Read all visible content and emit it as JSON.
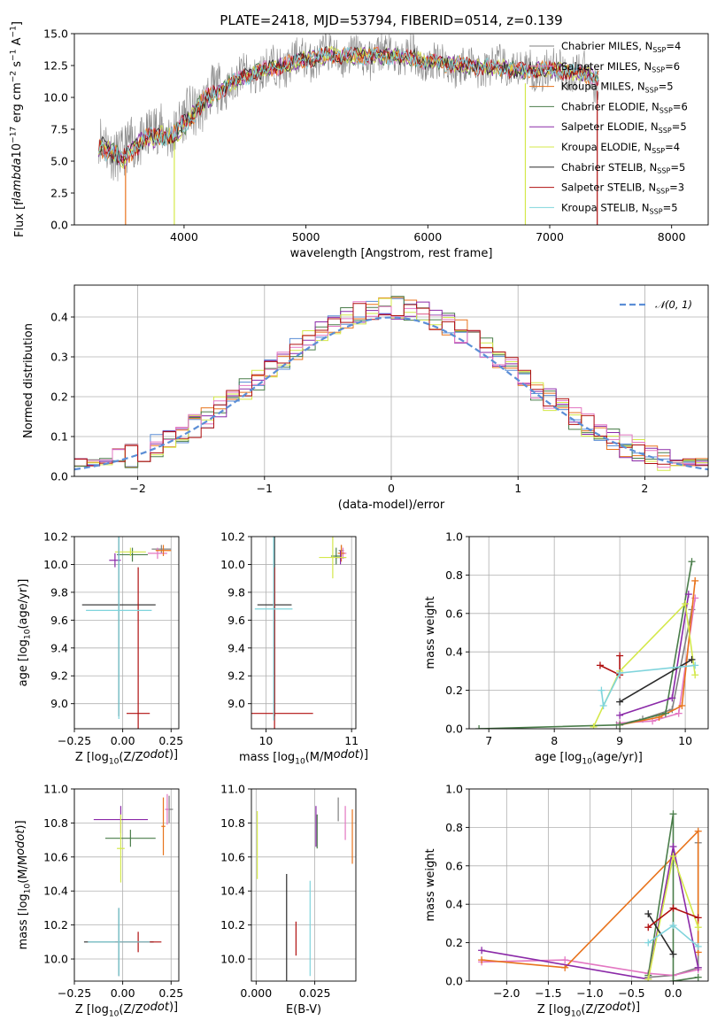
{
  "figure": {
    "title": "PLATE=2418, MJD=53794, FIBERID=0514, z=0.139"
  },
  "models": [
    {
      "name": "Chabrier MILES, N$_{SSP}$=4",
      "color": "#808080"
    },
    {
      "name": "Salpeter MILES, N$_{SSP}$=6",
      "color": "#e377c2"
    },
    {
      "name": "Kroupa MILES, N$_{SSP}$=5",
      "color": "#e8731c"
    },
    {
      "name": "Chabrier ELODIE, N$_{SSP}$=6",
      "color": "#4a7d4a"
    },
    {
      "name": "Salpeter ELODIE, N$_{SSP}$=5",
      "color": "#8b2aa8"
    },
    {
      "name": "Kroupa ELODIE, N$_{SSP}$=4",
      "color": "#d4e84a"
    },
    {
      "name": "Chabrier STELIB, N$_{SSP}$=5",
      "color": "#2b2b2b"
    },
    {
      "name": "Salpeter STELIB, N$_{SSP}$=3",
      "color": "#b01010"
    },
    {
      "name": "Kroupa STELIB, N$_{SSP}$=5",
      "color": "#7fd4dc"
    }
  ],
  "chart_data": [
    {
      "id": "spectrum",
      "type": "line",
      "xlabel": "wavelength [Angstrom, rest frame]",
      "ylabel": "Flux [f$_\\lambda$10$^{-17}$ erg cm$^{-2}$ s$^{-1}$ A$^{-1}$]",
      "xlim": [
        3100,
        8300
      ],
      "ylim": [
        0,
        15
      ],
      "xticks": [
        4000,
        5000,
        6000,
        7000,
        8000
      ],
      "yticks": [
        0.0,
        2.5,
        5.0,
        7.5,
        10.0,
        12.5,
        15.0
      ],
      "continuum": [
        [
          3300,
          6.5
        ],
        [
          3500,
          5.5
        ],
        [
          3700,
          7.2
        ],
        [
          3900,
          7.3
        ],
        [
          4000,
          8.2
        ],
        [
          4200,
          10.0
        ],
        [
          4400,
          11.2
        ],
        [
          4600,
          12.0
        ],
        [
          4800,
          12.5
        ],
        [
          5000,
          13.0
        ],
        [
          5200,
          13.3
        ],
        [
          5400,
          13.2
        ],
        [
          5600,
          13.3
        ],
        [
          5800,
          13.2
        ],
        [
          6000,
          12.8
        ],
        [
          6200,
          12.6
        ],
        [
          6400,
          12.4
        ],
        [
          6600,
          12.3
        ],
        [
          6800,
          12.1
        ],
        [
          7000,
          12.2
        ],
        [
          7200,
          12.0
        ],
        [
          7400,
          11.5
        ]
      ],
      "dips": [
        [
          3520,
          0
        ],
        [
          3920,
          0
        ],
        [
          6800,
          0
        ],
        [
          7390,
          0
        ]
      ],
      "grid": false,
      "legend": "right"
    },
    {
      "id": "residuals",
      "type": "histogram",
      "xlabel": "(data-model)/error",
      "ylabel": "Normed distribution",
      "xlim": [
        -2.5,
        2.5
      ],
      "ylim": [
        0,
        0.48
      ],
      "xticks": [
        -2,
        -1,
        0,
        1,
        2
      ],
      "yticks": [
        0.0,
        0.1,
        0.2,
        0.3,
        0.4
      ],
      "bin_width": 0.1,
      "reference": {
        "name": "$\\mathcal{N}(0, 1)$",
        "mean": 0,
        "sigma": 1,
        "color": "#5b8ed6"
      },
      "grid": true,
      "legend": "top-right"
    },
    {
      "id": "age-vs-z",
      "type": "errorbar",
      "xlabel": "Z [log$_{10}$(Z/Z$_\\odot$)]",
      "ylabel": "age  [log$_{10}$(age/yr)]",
      "xlim": [
        -0.25,
        0.29
      ],
      "ylim": [
        8.82,
        10.2
      ],
      "xticks": [
        -0.25,
        0.0,
        0.25
      ],
      "yticks": [
        9.0,
        9.2,
        9.4,
        9.6,
        9.8,
        10.0,
        10.2
      ],
      "points": [
        {
          "x": 0.2,
          "y": 10.11,
          "xerr": 0.05,
          "yerr": 0.03
        },
        {
          "x": 0.18,
          "y": 10.08,
          "xerr": 0.05,
          "yerr": 0.04
        },
        {
          "x": 0.21,
          "y": 10.1,
          "xerr": 0.04,
          "yerr": 0.04
        },
        {
          "x": 0.05,
          "y": 10.07,
          "xerr": 0.08,
          "yerr": 0.05
        },
        {
          "x": -0.04,
          "y": 10.03,
          "xerr": 0.03,
          "yerr": 0.05
        },
        {
          "x": 0.04,
          "y": 10.09,
          "xerr": 0.08,
          "yerr": 0.03
        },
        {
          "x": -0.02,
          "y": 9.71,
          "xerr": 0.19,
          "yerr": 0.8
        },
        {
          "x": 0.08,
          "y": 8.93,
          "xerr": 0.06,
          "yerr": 1.05
        },
        {
          "x": -0.02,
          "y": 9.67,
          "xerr": 0.17,
          "yerr": 0.78
        }
      ],
      "grid": true
    },
    {
      "id": "age-vs-mass",
      "type": "errorbar",
      "xlabel": "mass [log$_{10}$(M/M$_\\odot$)]",
      "ylabel": "",
      "xlim": [
        9.83,
        11.05
      ],
      "ylim": [
        8.82,
        10.2
      ],
      "xticks": [
        10,
        11
      ],
      "yticks": [
        9.0,
        9.2,
        9.4,
        9.6,
        9.8,
        10.0,
        10.2
      ],
      "points": [
        {
          "x": 10.88,
          "y": 10.1,
          "xerr": 0.03,
          "yerr": 0.04
        },
        {
          "x": 10.9,
          "y": 10.08,
          "xerr": 0.04,
          "yerr": 0.04
        },
        {
          "x": 10.88,
          "y": 10.08,
          "xerr": 0.04,
          "yerr": 0.06
        },
        {
          "x": 10.82,
          "y": 10.06,
          "xerr": 0.06,
          "yerr": 0.06
        },
        {
          "x": 10.87,
          "y": 10.05,
          "xerr": 0.06,
          "yerr": 0.05
        },
        {
          "x": 10.78,
          "y": 10.05,
          "xerr": 0.16,
          "yerr": 0.15
        },
        {
          "x": 10.1,
          "y": 9.71,
          "xerr": 0.2,
          "yerr": 0.8
        },
        {
          "x": 10.1,
          "y": 8.93,
          "xerr": 0.45,
          "yerr": 1.05
        },
        {
          "x": 10.09,
          "y": 9.68,
          "xerr": 0.22,
          "yerr": 0.8
        }
      ],
      "grid": true
    },
    {
      "id": "weight-vs-age",
      "type": "line",
      "xlabel": "age  [log$_{10}$(age/yr)]",
      "ylabel": "mass weight",
      "xlim": [
        6.7,
        10.35
      ],
      "ylim": [
        0,
        1
      ],
      "xticks": [
        7,
        8,
        9,
        10
      ],
      "yticks": [
        0.0,
        0.2,
        0.4,
        0.6,
        0.8,
        1.0
      ],
      "series": [
        {
          "x": [
            8.95,
            9.35,
            9.8,
            10.1
          ],
          "y": [
            0.02,
            0.05,
            0.1,
            0.62
          ]
        },
        {
          "x": [
            9.0,
            9.5,
            9.9,
            10.15
          ],
          "y": [
            0.03,
            0.04,
            0.08,
            0.68
          ]
        },
        {
          "x": [
            9.0,
            9.6,
            9.95,
            10.15
          ],
          "y": [
            0.02,
            0.06,
            0.12,
            0.77
          ]
        },
        {
          "x": [
            6.85,
            9.0,
            9.7,
            10.1
          ],
          "y": [
            0.0,
            0.02,
            0.08,
            0.87
          ]
        },
        {
          "x": [
            9.0,
            9.8,
            10.05
          ],
          "y": [
            0.07,
            0.16,
            0.7
          ]
        },
        {
          "x": [
            8.6,
            9.0,
            10.0,
            10.15
          ],
          "y": [
            0.01,
            0.3,
            0.65,
            0.28
          ]
        },
        {
          "x": [
            9.0,
            10.1
          ],
          "y": [
            0.14,
            0.36
          ]
        },
        {
          "x": [
            8.7,
            9.0,
            9.0
          ],
          "y": [
            0.33,
            0.28,
            0.38
          ]
        },
        {
          "x": [
            8.72,
            8.75,
            9.0,
            10.15
          ],
          "y": [
            0.2,
            0.12,
            0.29,
            0.33
          ]
        }
      ],
      "grid": true
    },
    {
      "id": "mass-vs-z",
      "type": "errorbar",
      "xlabel": "Z [log$_{10}$(Z/Z$_\\odot$)]",
      "ylabel": "mass [log$_{10}$(M/M$_\\odot$)]",
      "xlim": [
        -0.25,
        0.29
      ],
      "ylim": [
        9.87,
        11.0
      ],
      "xticks": [
        -0.25,
        0.0,
        0.25
      ],
      "yticks": [
        10.0,
        10.2,
        10.4,
        10.6,
        10.8,
        11.0
      ],
      "points": [
        {
          "x": 0.24,
          "y": 10.88,
          "xerr": 0.02,
          "yerr": 0.08
        },
        {
          "x": 0.23,
          "y": 10.88,
          "xerr": 0.01,
          "yerr": 0.09
        },
        {
          "x": 0.21,
          "y": 10.78,
          "xerr": 0.01,
          "yerr": 0.17
        },
        {
          "x": 0.04,
          "y": 10.71,
          "xerr": 0.13,
          "yerr": 0.05
        },
        {
          "x": -0.01,
          "y": 10.82,
          "xerr": 0.14,
          "yerr": 0.08
        },
        {
          "x": -0.01,
          "y": 10.65,
          "xerr": 0.02,
          "yerr": 0.2
        },
        {
          "x": -0.02,
          "y": 10.1,
          "xerr": 0.18,
          "yerr": 0.2
        },
        {
          "x": 0.08,
          "y": 10.1,
          "xerr": 0.12,
          "yerr": 0.06
        },
        {
          "x": -0.02,
          "y": 10.1,
          "xerr": 0.16,
          "yerr": 0.2
        }
      ],
      "grid": true
    },
    {
      "id": "mass-vs-ebv",
      "type": "errorbar",
      "xlabel": "E(B-V)",
      "ylabel": "",
      "xlim": [
        -0.002,
        0.0425
      ],
      "ylim": [
        9.87,
        11.0
      ],
      "xticks": [
        0.0,
        0.025
      ],
      "yticks": [
        10.0,
        10.2,
        10.4,
        10.6,
        10.8,
        11.0
      ],
      "points": [
        {
          "x": 0.035,
          "y": 10.88,
          "xerr": 0,
          "yerr": 0.07
        },
        {
          "x": 0.038,
          "y": 10.8,
          "xerr": 0,
          "yerr": 0.1
        },
        {
          "x": 0.041,
          "y": 10.72,
          "xerr": 0,
          "yerr": 0.16
        },
        {
          "x": 0.026,
          "y": 10.75,
          "xerr": 0,
          "yerr": 0.1
        },
        {
          "x": 0.0255,
          "y": 10.78,
          "xerr": 0,
          "yerr": 0.12
        },
        {
          "x": 0.0005,
          "y": 10.67,
          "xerr": 0,
          "yerr": 0.2
        },
        {
          "x": 0.013,
          "y": 10.1,
          "xerr": 0,
          "yerr": 0.4
        },
        {
          "x": 0.017,
          "y": 10.12,
          "xerr": 0,
          "yerr": 0.1
        },
        {
          "x": 0.023,
          "y": 10.18,
          "xerr": 0,
          "yerr": 0.28
        }
      ],
      "grid": true
    },
    {
      "id": "weight-vs-z",
      "type": "line",
      "xlabel": "Z [log$_{10}$(Z/Z$_\\odot$)]",
      "ylabel": "mass weight",
      "xlim": [
        -2.45,
        0.42
      ],
      "ylim": [
        0,
        1
      ],
      "xticks": [
        -2.0,
        -1.5,
        -1.0,
        -0.5,
        0.0
      ],
      "yticks": [
        0.0,
        0.2,
        0.4,
        0.6,
        0.8,
        1.0
      ],
      "series": [
        {
          "x": [
            -0.3,
            0.0,
            0.3,
            0.3
          ],
          "y": [
            0.02,
            0.03,
            0.07,
            0.72
          ]
        },
        {
          "x": [
            -2.3,
            -1.3,
            -0.3,
            0.0,
            0.3
          ],
          "y": [
            0.1,
            0.11,
            0.04,
            0.03,
            0.06
          ]
        },
        {
          "x": [
            -2.3,
            -1.3,
            0.3,
            0.3
          ],
          "y": [
            0.11,
            0.07,
            0.78,
            0.15
          ]
        },
        {
          "x": [
            -0.3,
            0.0,
            0.0,
            0.3
          ],
          "y": [
            0.03,
            0.87,
            0.0,
            0.02
          ]
        },
        {
          "x": [
            -2.3,
            -0.3,
            0.0,
            0.3
          ],
          "y": [
            0.16,
            0.01,
            0.7,
            0.07
          ]
        },
        {
          "x": [
            -0.3,
            0.0,
            0.3
          ],
          "y": [
            0.01,
            0.65,
            0.28
          ]
        },
        {
          "x": [
            -0.3,
            0.0
          ],
          "y": [
            0.35,
            0.14
          ]
        },
        {
          "x": [
            -0.3,
            0.0,
            0.3
          ],
          "y": [
            0.28,
            0.38,
            0.33
          ]
        },
        {
          "x": [
            -0.3,
            0.0,
            0.3
          ],
          "y": [
            0.2,
            0.29,
            0.18
          ]
        }
      ],
      "grid": true
    }
  ]
}
